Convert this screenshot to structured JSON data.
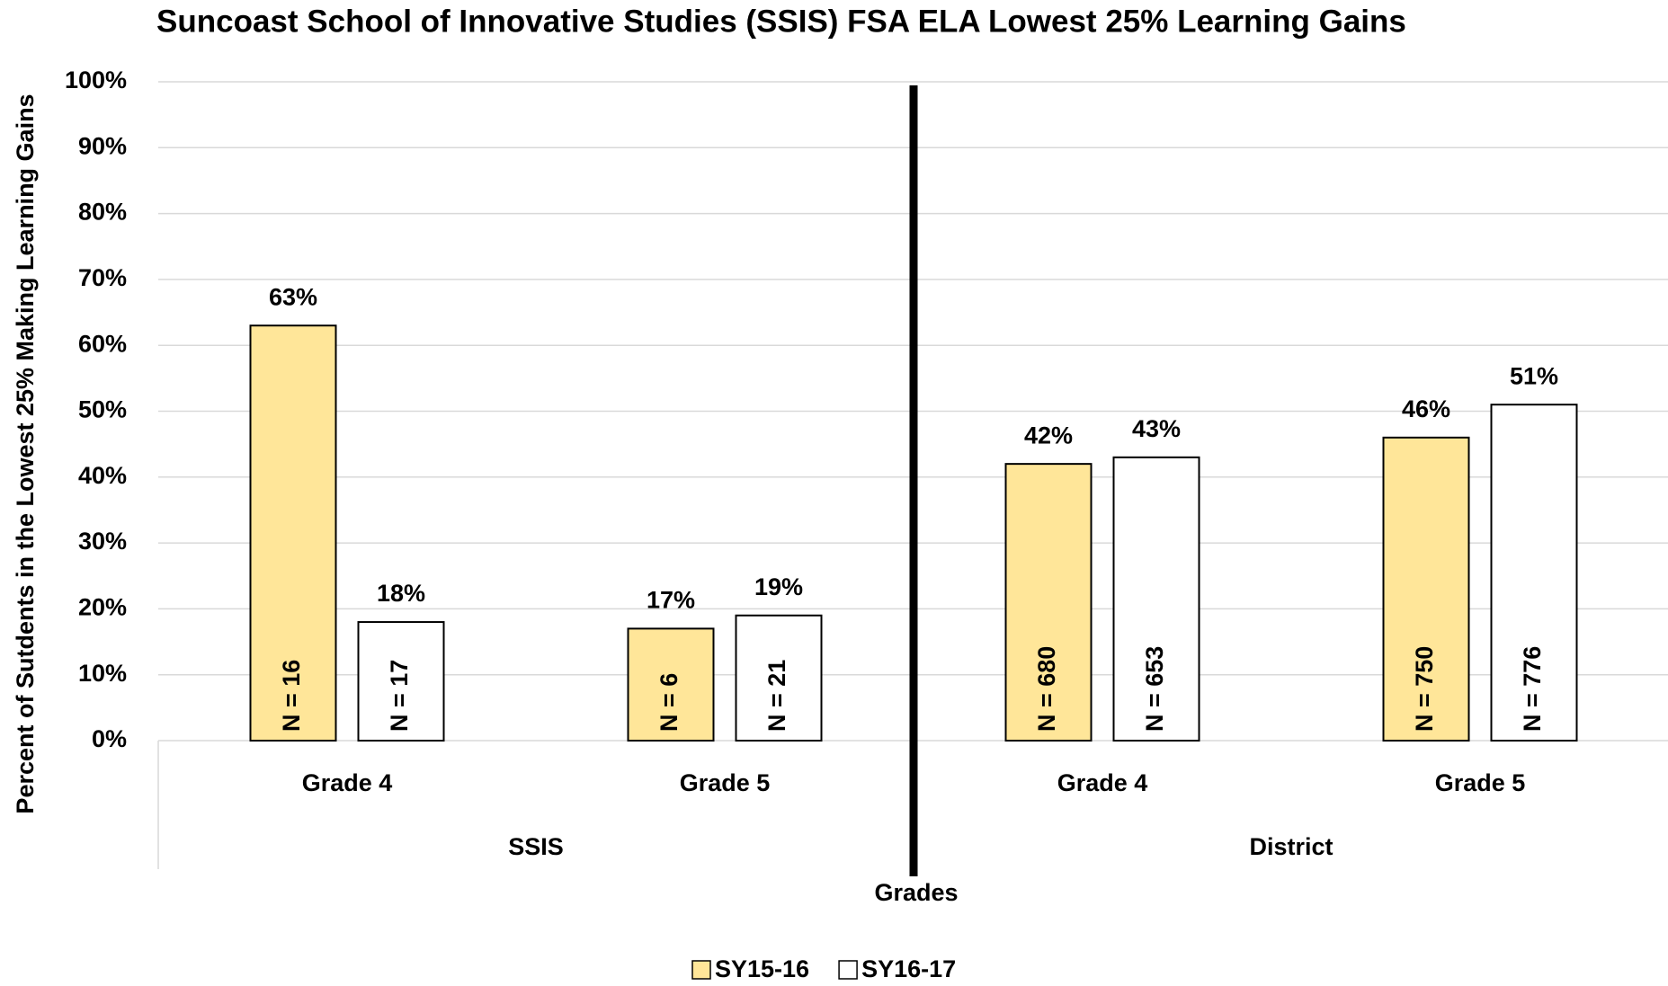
{
  "chart_data": {
    "type": "bar",
    "title": "Suncoast School of Innovative Studies (SSIS) FSA ELA Lowest 25% Learning Gains",
    "x_label": "Grades",
    "y_label": "Percent of Sutdents in the Lowest 25% Making Learning Gains",
    "categories": [
      "Grade 4",
      "Grade 5",
      "Grade 4",
      "Grade 5"
    ],
    "groups": [
      {
        "name": "SSIS",
        "span": 2
      },
      {
        "name": "District",
        "span": 2
      }
    ],
    "series": [
      {
        "name": "SY15-16",
        "color": "#ffe699",
        "values": [
          63,
          17,
          42,
          46
        ],
        "value_labels": [
          "63%",
          "17%",
          "42%",
          "46%"
        ],
        "n_labels": [
          "N = 16",
          "N = 6",
          "N = 680",
          "N = 750"
        ]
      },
      {
        "name": "SY16-17",
        "color": "#ffffff",
        "values": [
          18,
          19,
          43,
          51
        ],
        "value_labels": [
          "18%",
          "19%",
          "43%",
          "51%"
        ],
        "n_labels": [
          "N = 17",
          "N = 21",
          "N = 653",
          "N = 776"
        ]
      }
    ],
    "ylim": [
      0,
      100
    ],
    "yticks": [
      {
        "value": 0,
        "label": "0%"
      },
      {
        "value": 10,
        "label": "10%"
      },
      {
        "value": 20,
        "label": "20%"
      },
      {
        "value": 30,
        "label": "30%"
      },
      {
        "value": 40,
        "label": "40%"
      },
      {
        "value": 50,
        "label": "50%"
      },
      {
        "value": 60,
        "label": "60%"
      },
      {
        "value": 70,
        "label": "70%"
      },
      {
        "value": 80,
        "label": "80%"
      },
      {
        "value": 90,
        "label": "90%"
      },
      {
        "value": 100,
        "label": "100%"
      }
    ],
    "grid": true,
    "legend": "bottom"
  }
}
